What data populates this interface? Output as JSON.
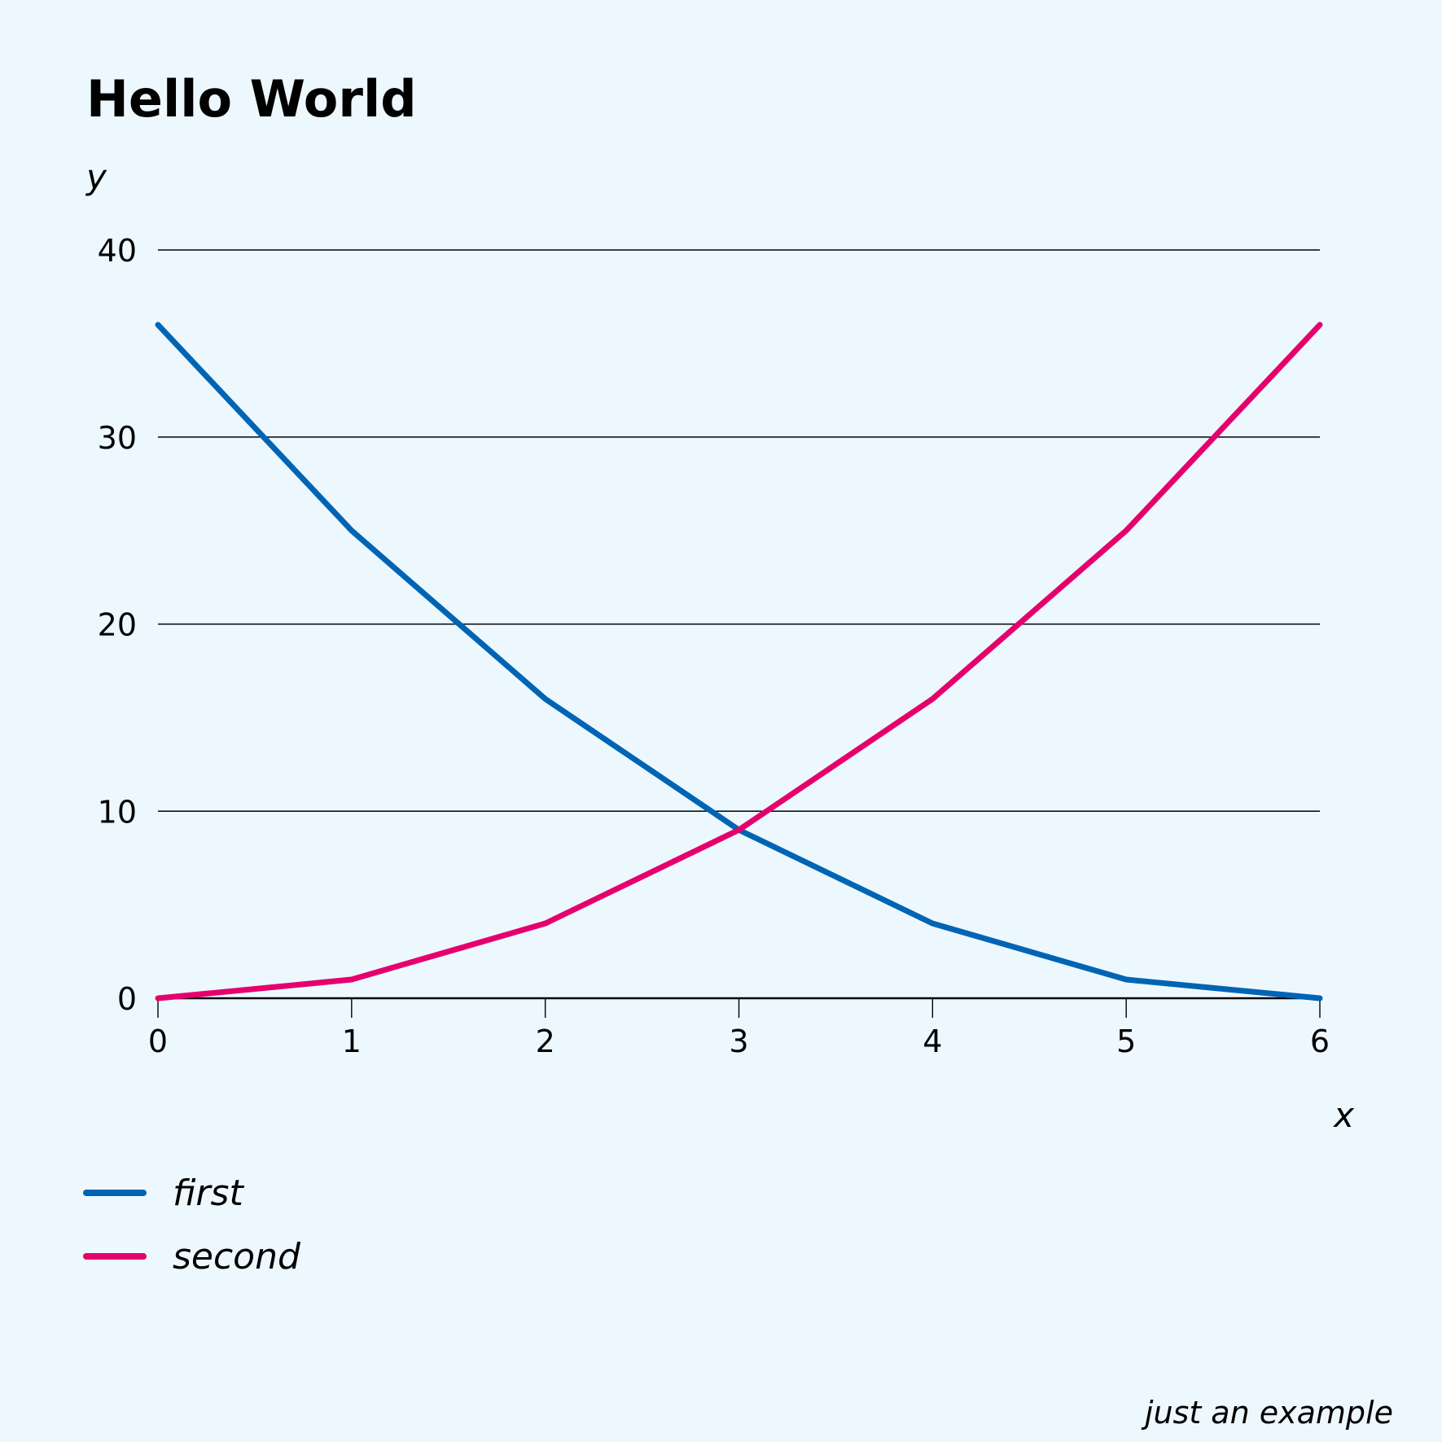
{
  "chart_data": {
    "type": "line",
    "title": "Hello World",
    "xlabel": "x",
    "ylabel": "y",
    "caption": "just an example",
    "x": [
      0,
      1,
      2,
      3,
      4,
      5,
      6
    ],
    "xlim": [
      0,
      6
    ],
    "ylim": [
      0,
      40
    ],
    "x_ticks": [
      "0",
      "1",
      "2",
      "3",
      "4",
      "5",
      "6"
    ],
    "y_ticks": [
      "0",
      "10",
      "20",
      "30",
      "40"
    ],
    "y_tick_values": [
      0,
      10,
      20,
      30,
      40
    ],
    "grid": "horizontal",
    "legend_position": "bottom-left",
    "series": [
      {
        "name": "first",
        "color": "#0064b4",
        "values": [
          36,
          25,
          16,
          9,
          4,
          1,
          0
        ]
      },
      {
        "name": "second",
        "color": "#e6006e",
        "values": [
          0,
          1,
          4,
          9,
          16,
          25,
          36
        ]
      }
    ]
  }
}
